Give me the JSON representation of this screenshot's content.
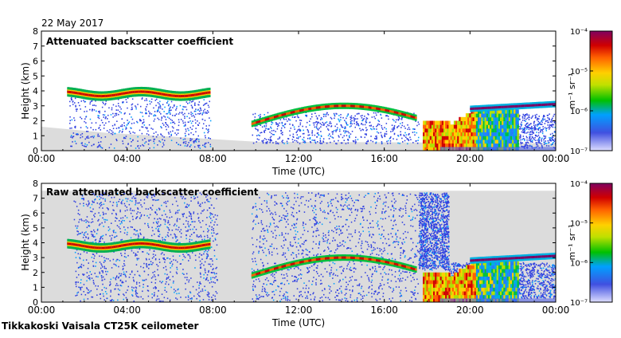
{
  "date": "22 May 2017",
  "footer": "Tikkakoski Vaisala CT25K ceilometer",
  "chart_data": [
    {
      "type": "heatmap",
      "title": "Attenuated backscatter coefficient",
      "xlabel": "Time (UTC)",
      "ylabel": "Height (km)",
      "xticks": [
        "00:00",
        "04:00",
        "08:00",
        "12:00",
        "16:00",
        "20:00",
        "00:00"
      ],
      "xlim_hours": [
        0,
        24
      ],
      "ylim": [
        0,
        8
      ],
      "yticks": [
        "0",
        "1",
        "2",
        "3",
        "4",
        "5",
        "6",
        "7",
        "8"
      ],
      "colorbar": {
        "unit": "m⁻¹ sr⁻¹",
        "ticks": [
          "10⁻⁷",
          "10⁻⁶",
          "10⁻⁵",
          "10⁻⁴"
        ],
        "range_log10": [
          -7,
          -4
        ]
      },
      "features": [
        {
          "name": "aerosol layer",
          "start_h": 1.2,
          "end_h": 7.8,
          "height_km": 3.8
        },
        {
          "name": "cloud base",
          "start_h": 9.8,
          "end_h": 17.5,
          "height_km": 2.5
        },
        {
          "name": "precipitation",
          "start_h": 17.8,
          "end_h": 22.2,
          "height_km": 2.0
        },
        {
          "name": "cloud layer",
          "start_h": 20.0,
          "end_h": 24.0,
          "height_km": 3.0
        }
      ]
    },
    {
      "type": "heatmap",
      "title": "Raw attenuated backscatter coefficient",
      "xlabel": "Time (UTC)",
      "ylabel": "Height (km)",
      "xticks": [
        "00:00",
        "04:00",
        "08:00",
        "12:00",
        "16:00",
        "20:00",
        "00:00"
      ],
      "xlim_hours": [
        0,
        24
      ],
      "ylim": [
        0,
        8
      ],
      "yticks": [
        "0",
        "1",
        "2",
        "3",
        "4",
        "5",
        "6",
        "7",
        "8"
      ],
      "colorbar": {
        "unit": "m⁻¹ sr⁻¹",
        "ticks": [
          "10⁻⁷",
          "10⁻⁶",
          "10⁻⁵",
          "10⁻⁴"
        ],
        "range_log10": [
          -7,
          -4
        ]
      },
      "features": [
        {
          "name": "aerosol layer",
          "start_h": 1.2,
          "end_h": 7.8,
          "height_km": 3.8
        },
        {
          "name": "cloud base",
          "start_h": 9.8,
          "end_h": 17.5,
          "height_km": 2.5
        },
        {
          "name": "precipitation",
          "start_h": 17.8,
          "end_h": 22.2,
          "height_km": 2.0
        },
        {
          "name": "cloud layer",
          "start_h": 20.0,
          "end_h": 24.0,
          "height_km": 3.0
        }
      ]
    }
  ]
}
